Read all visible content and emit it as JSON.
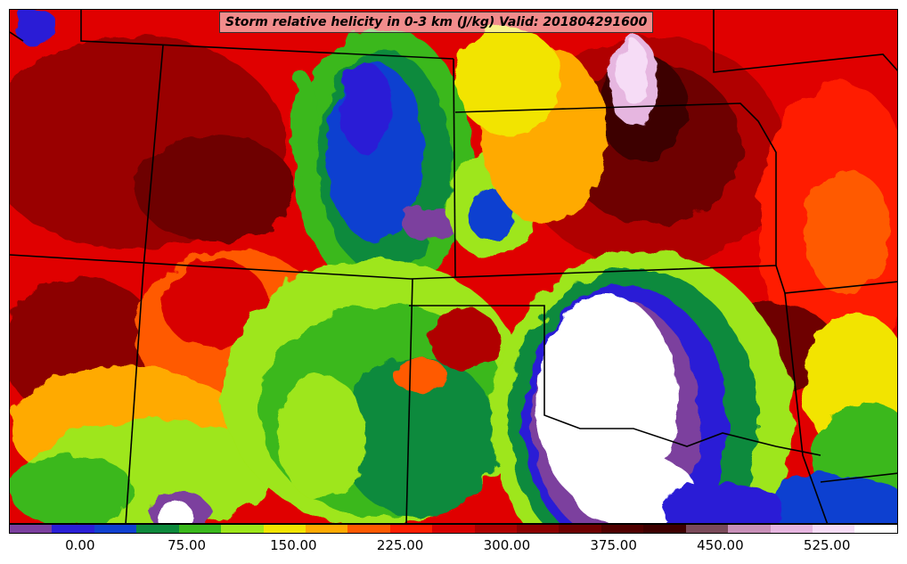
{
  "map": {
    "title": "Storm relative helicity in 0-3 km (J/kg) Valid: 201804291600",
    "variable": "Storm relative helicity in 0-3 km",
    "units": "J/kg",
    "valid_time": "201804291600"
  },
  "colorbar": {
    "colors": [
      "#7b3f9e",
      "#2a1fd6",
      "#1040d0",
      "#0d8a3c",
      "#3ab81c",
      "#9ee61a",
      "#f2e400",
      "#ffaa00",
      "#ff5a00",
      "#ff1e00",
      "#d80000",
      "#b00000",
      "#8c0000",
      "#6e0000",
      "#500000",
      "#3e0000",
      "#7a4a5a",
      "#c890b8",
      "#e6b6e0",
      "#f6dcf6",
      "#ffffff"
    ],
    "tick_labels": [
      "0.00",
      "75.00",
      "150.00",
      "225.00",
      "300.00",
      "375.00",
      "450.00",
      "525.00"
    ],
    "tick_values": [
      0,
      75,
      150,
      225,
      300,
      375,
      450,
      525
    ],
    "range": [
      -50,
      575
    ]
  }
}
